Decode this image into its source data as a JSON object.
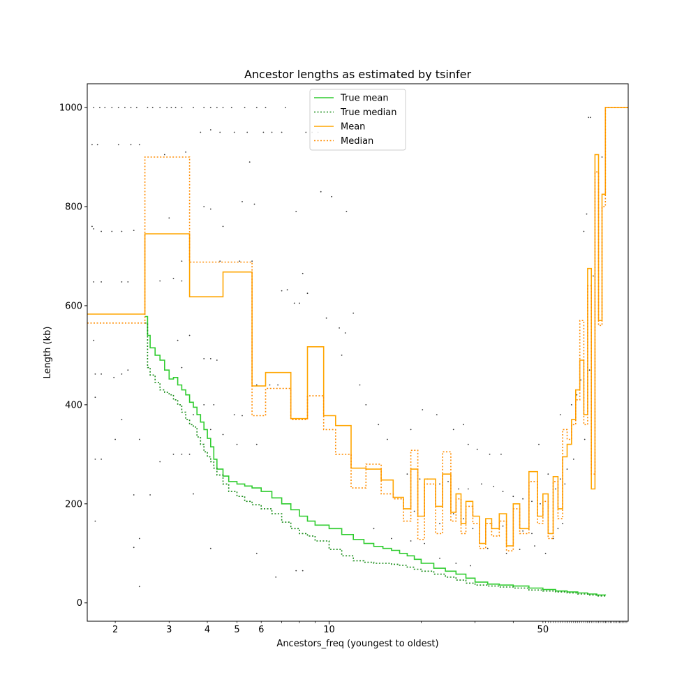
{
  "chart_data": {
    "type": "line",
    "title": "Ancestor lengths as estimated by tsinfer",
    "xlabel": "Ancestors_freq (youngest to oldest)",
    "ylabel": "Length (kb)",
    "xscale": "log",
    "xlim": [
      1.62,
      95
    ],
    "ylim": [
      -37,
      1048
    ],
    "xticks_major": [
      {
        "value": 10,
        "label": "10"
      }
    ],
    "xticks_minor": [
      {
        "value": 2,
        "label": "2"
      },
      {
        "value": 3,
        "label": "3"
      },
      {
        "value": 4,
        "label": "4"
      },
      {
        "value": 5,
        "label": "5"
      },
      {
        "value": 6,
        "label": "6"
      },
      {
        "value": 50,
        "label": "50"
      }
    ],
    "yticks": [
      0,
      200,
      400,
      600,
      800,
      1000
    ],
    "grid": false,
    "legend": {
      "placement": "top-center"
    },
    "colors": {
      "true_mean": "#2ecc2e",
      "true_median": "#188c18",
      "mean": "#ffa500",
      "median": "#ff8c00",
      "points": "#333333"
    },
    "series": [
      {
        "name": "True mean",
        "style": "solid",
        "x": [
          2.5,
          2.55,
          2.6,
          2.7,
          2.8,
          2.9,
          3.0,
          3.1,
          3.2,
          3.3,
          3.4,
          3.5,
          3.6,
          3.7,
          3.8,
          3.9,
          4.0,
          4.1,
          4.2,
          4.3,
          4.5,
          4.7,
          5.0,
          5.3,
          5.6,
          6.0,
          6.5,
          7.0,
          7.5,
          8.0,
          8.5,
          9.0,
          10,
          11,
          12,
          13,
          14,
          15,
          16,
          17,
          18,
          19,
          20,
          22,
          24,
          26,
          28,
          30,
          33,
          36,
          40,
          45,
          50,
          55,
          60,
          65,
          70,
          75,
          80
        ],
        "values": [
          578,
          540,
          515,
          500,
          490,
          470,
          452,
          455,
          440,
          430,
          420,
          405,
          395,
          380,
          365,
          350,
          332,
          315,
          290,
          270,
          256,
          245,
          240,
          236,
          232,
          225,
          212,
          200,
          188,
          175,
          165,
          157,
          150,
          138,
          128,
          120,
          114,
          110,
          106,
          100,
          95,
          88,
          80,
          70,
          64,
          58,
          50,
          42,
          38,
          36,
          34,
          30,
          27,
          24,
          22,
          20,
          18,
          16,
          15
        ]
      },
      {
        "name": "True median",
        "style": "dotted",
        "x": [
          2.5,
          2.55,
          2.6,
          2.7,
          2.8,
          2.9,
          3.0,
          3.1,
          3.2,
          3.3,
          3.4,
          3.5,
          3.6,
          3.7,
          3.8,
          3.9,
          4.0,
          4.1,
          4.2,
          4.3,
          4.5,
          4.7,
          5.0,
          5.3,
          5.6,
          6.0,
          6.5,
          7.0,
          7.5,
          8.0,
          8.5,
          9.0,
          10,
          11,
          12,
          13,
          14,
          15,
          16,
          17,
          18,
          19,
          20,
          22,
          24,
          26,
          28,
          30,
          33,
          36,
          40,
          45,
          50,
          55,
          60,
          65,
          70,
          75,
          80
        ],
        "values": [
          565,
          475,
          460,
          445,
          430,
          425,
          420,
          410,
          400,
          385,
          370,
          360,
          355,
          335,
          320,
          305,
          295,
          285,
          272,
          258,
          240,
          225,
          215,
          205,
          198,
          190,
          180,
          163,
          150,
          140,
          135,
          125,
          108,
          95,
          85,
          82,
          80,
          80,
          78,
          76,
          72,
          68,
          64,
          58,
          52,
          46,
          40,
          36,
          34,
          32,
          30,
          26,
          24,
          22,
          20,
          18,
          16,
          14,
          12
        ]
      },
      {
        "name": "Mean",
        "style": "solid",
        "x": [
          1.62,
          2.5,
          3.5,
          4.5,
          5.6,
          6.2,
          7.5,
          8.5,
          9.6,
          10.5,
          11.8,
          13.2,
          14.8,
          16.2,
          17.5,
          18.5,
          19.5,
          20.5,
          22.3,
          23.5,
          25,
          26,
          27,
          28,
          29.5,
          31,
          32.5,
          34,
          36,
          38,
          40,
          42,
          45,
          48,
          50,
          52,
          54,
          56,
          58,
          60,
          62,
          64,
          66,
          68,
          70,
          72,
          74,
          76,
          78,
          80,
          95
        ],
        "values": [
          583,
          745,
          618,
          668,
          438,
          465,
          372,
          517,
          378,
          358,
          272,
          270,
          248,
          213,
          190,
          270,
          175,
          250,
          195,
          260,
          183,
          220,
          160,
          205,
          175,
          120,
          170,
          150,
          180,
          115,
          200,
          150,
          265,
          175,
          220,
          140,
          255,
          190,
          295,
          320,
          370,
          430,
          490,
          380,
          675,
          230,
          905,
          570,
          825,
          1000,
          1000
        ]
      },
      {
        "name": "Median",
        "style": "dotted",
        "x": [
          1.62,
          2.5,
          3.5,
          4.5,
          5.6,
          6.2,
          7.5,
          8.5,
          9.6,
          10.5,
          11.8,
          13.2,
          14.8,
          16.2,
          17.5,
          18.5,
          19.5,
          20.5,
          22.3,
          23.5,
          25,
          26,
          27,
          28,
          29.5,
          31,
          32.5,
          34,
          36,
          38,
          40,
          42,
          45,
          48,
          50,
          52,
          54,
          56,
          58,
          60,
          62,
          64,
          66,
          68,
          70,
          72,
          74,
          76,
          78,
          80,
          95
        ],
        "values": [
          565,
          900,
          688,
          688,
          378,
          433,
          370,
          418,
          350,
          300,
          232,
          280,
          220,
          210,
          165,
          308,
          128,
          240,
          140,
          305,
          165,
          210,
          140,
          195,
          160,
          110,
          160,
          135,
          165,
          105,
          190,
          140,
          245,
          160,
          205,
          130,
          245,
          170,
          350,
          330,
          360,
          410,
          570,
          360,
          640,
          260,
          870,
          560,
          800,
          1000,
          1000
        ]
      }
    ],
    "scatter_points": [
      {
        "x": 1.7,
        "y": 1000
      },
      {
        "x": 1.78,
        "y": 1000
      },
      {
        "x": 1.85,
        "y": 1000
      },
      {
        "x": 1.95,
        "y": 1000
      },
      {
        "x": 2.05,
        "y": 1000
      },
      {
        "x": 2.15,
        "y": 1000
      },
      {
        "x": 2.25,
        "y": 1000
      },
      {
        "x": 2.35,
        "y": 1000
      },
      {
        "x": 2.55,
        "y": 1000
      },
      {
        "x": 2.65,
        "y": 1000
      },
      {
        "x": 2.8,
        "y": 1000
      },
      {
        "x": 2.95,
        "y": 1000
      },
      {
        "x": 3.05,
        "y": 1000
      },
      {
        "x": 3.15,
        "y": 1000
      },
      {
        "x": 3.3,
        "y": 1000
      },
      {
        "x": 3.6,
        "y": 1000
      },
      {
        "x": 3.9,
        "y": 1000
      },
      {
        "x": 4.1,
        "y": 1000
      },
      {
        "x": 4.3,
        "y": 1000
      },
      {
        "x": 4.5,
        "y": 1000
      },
      {
        "x": 4.8,
        "y": 1000
      },
      {
        "x": 5.3,
        "y": 1000
      },
      {
        "x": 5.8,
        "y": 1000
      },
      {
        "x": 6.2,
        "y": 1000
      },
      {
        "x": 7.2,
        "y": 1000
      },
      {
        "x": 1.68,
        "y": 925
      },
      {
        "x": 1.75,
        "y": 925
      },
      {
        "x": 2.05,
        "y": 925
      },
      {
        "x": 2.25,
        "y": 925
      },
      {
        "x": 2.4,
        "y": 925
      },
      {
        "x": 3.8,
        "y": 950
      },
      {
        "x": 4.1,
        "y": 955
      },
      {
        "x": 4.4,
        "y": 950
      },
      {
        "x": 4.9,
        "y": 950
      },
      {
        "x": 5.4,
        "y": 950
      },
      {
        "x": 6.1,
        "y": 950
      },
      {
        "x": 6.5,
        "y": 950
      },
      {
        "x": 7.0,
        "y": 950
      },
      {
        "x": 8.4,
        "y": 950
      },
      {
        "x": 8.8,
        "y": 950
      },
      {
        "x": 9.2,
        "y": 950
      },
      {
        "x": 2.9,
        "y": 905
      },
      {
        "x": 3.4,
        "y": 910
      },
      {
        "x": 5.5,
        "y": 890
      },
      {
        "x": 9.4,
        "y": 830
      },
      {
        "x": 10.2,
        "y": 820
      },
      {
        "x": 11.4,
        "y": 790
      },
      {
        "x": 5.2,
        "y": 810
      },
      {
        "x": 5.7,
        "y": 805
      },
      {
        "x": 7.8,
        "y": 790
      },
      {
        "x": 3.9,
        "y": 800
      },
      {
        "x": 4.1,
        "y": 795
      },
      {
        "x": 4.5,
        "y": 760
      },
      {
        "x": 1.68,
        "y": 760
      },
      {
        "x": 1.7,
        "y": 755
      },
      {
        "x": 1.8,
        "y": 750
      },
      {
        "x": 1.95,
        "y": 750
      },
      {
        "x": 2.1,
        "y": 750
      },
      {
        "x": 2.3,
        "y": 752
      },
      {
        "x": 3.0,
        "y": 777
      },
      {
        "x": 3.3,
        "y": 690
      },
      {
        "x": 1.7,
        "y": 648
      },
      {
        "x": 1.8,
        "y": 648
      },
      {
        "x": 2.1,
        "y": 648
      },
      {
        "x": 2.2,
        "y": 648
      },
      {
        "x": 2.8,
        "y": 650
      },
      {
        "x": 3.1,
        "y": 655
      },
      {
        "x": 3.3,
        "y": 650
      },
      {
        "x": 4.4,
        "y": 690
      },
      {
        "x": 5.1,
        "y": 690
      },
      {
        "x": 5.6,
        "y": 690
      },
      {
        "x": 7.0,
        "y": 630
      },
      {
        "x": 7.3,
        "y": 632
      },
      {
        "x": 7.7,
        "y": 605
      },
      {
        "x": 8.0,
        "y": 605
      },
      {
        "x": 8.5,
        "y": 625
      },
      {
        "x": 8.2,
        "y": 665
      },
      {
        "x": 1.7,
        "y": 530
      },
      {
        "x": 1.72,
        "y": 462
      },
      {
        "x": 1.8,
        "y": 462
      },
      {
        "x": 1.98,
        "y": 455
      },
      {
        "x": 2.1,
        "y": 462
      },
      {
        "x": 2.2,
        "y": 470
      },
      {
        "x": 3.2,
        "y": 530
      },
      {
        "x": 3.5,
        "y": 540
      },
      {
        "x": 3.3,
        "y": 475
      },
      {
        "x": 3.9,
        "y": 493
      },
      {
        "x": 4.1,
        "y": 493
      },
      {
        "x": 4.3,
        "y": 490
      },
      {
        "x": 3.9,
        "y": 400
      },
      {
        "x": 4.2,
        "y": 400
      },
      {
        "x": 5.8,
        "y": 440
      },
      {
        "x": 6.4,
        "y": 440
      },
      {
        "x": 6.8,
        "y": 440
      },
      {
        "x": 4.9,
        "y": 380
      },
      {
        "x": 5.2,
        "y": 378
      },
      {
        "x": 3.6,
        "y": 380
      },
      {
        "x": 4.1,
        "y": 350
      },
      {
        "x": 4.5,
        "y": 340
      },
      {
        "x": 5.0,
        "y": 320
      },
      {
        "x": 5.8,
        "y": 320
      },
      {
        "x": 1.72,
        "y": 415
      },
      {
        "x": 2.1,
        "y": 370
      },
      {
        "x": 2.0,
        "y": 330
      },
      {
        "x": 2.4,
        "y": 330
      },
      {
        "x": 2.8,
        "y": 285
      },
      {
        "x": 3.1,
        "y": 300
      },
      {
        "x": 3.3,
        "y": 300
      },
      {
        "x": 3.5,
        "y": 300
      },
      {
        "x": 1.72,
        "y": 290
      },
      {
        "x": 1.8,
        "y": 290
      },
      {
        "x": 2.3,
        "y": 218
      },
      {
        "x": 2.6,
        "y": 218
      },
      {
        "x": 3.6,
        "y": 220
      },
      {
        "x": 1.72,
        "y": 165
      },
      {
        "x": 2.4,
        "y": 130
      },
      {
        "x": 2.3,
        "y": 112
      },
      {
        "x": 4.1,
        "y": 110
      },
      {
        "x": 2.4,
        "y": 33
      },
      {
        "x": 5.8,
        "y": 100
      },
      {
        "x": 6.7,
        "y": 52
      },
      {
        "x": 7.8,
        "y": 65
      },
      {
        "x": 8.2,
        "y": 65
      },
      {
        "x": 9.8,
        "y": 575
      },
      {
        "x": 10.8,
        "y": 555
      },
      {
        "x": 11.3,
        "y": 545
      },
      {
        "x": 12.0,
        "y": 585
      },
      {
        "x": 11.0,
        "y": 500
      },
      {
        "x": 12.6,
        "y": 440
      },
      {
        "x": 13.2,
        "y": 400
      },
      {
        "x": 14.5,
        "y": 360
      },
      {
        "x": 15.5,
        "y": 330
      },
      {
        "x": 18.5,
        "y": 350
      },
      {
        "x": 20.2,
        "y": 390
      },
      {
        "x": 22.5,
        "y": 380
      },
      {
        "x": 25.5,
        "y": 350
      },
      {
        "x": 27.5,
        "y": 360
      },
      {
        "x": 28.5,
        "y": 320
      },
      {
        "x": 30.5,
        "y": 310
      },
      {
        "x": 33.5,
        "y": 300
      },
      {
        "x": 36.5,
        "y": 300
      },
      {
        "x": 18.0,
        "y": 260
      },
      {
        "x": 19.8,
        "y": 250
      },
      {
        "x": 21.0,
        "y": 250
      },
      {
        "x": 23.0,
        "y": 240
      },
      {
        "x": 24.5,
        "y": 245
      },
      {
        "x": 26.5,
        "y": 230
      },
      {
        "x": 28.5,
        "y": 230
      },
      {
        "x": 31.5,
        "y": 240
      },
      {
        "x": 34.5,
        "y": 235
      },
      {
        "x": 37.0,
        "y": 225
      },
      {
        "x": 40.0,
        "y": 215
      },
      {
        "x": 43.0,
        "y": 210
      },
      {
        "x": 46.0,
        "y": 205
      },
      {
        "x": 49.0,
        "y": 200
      },
      {
        "x": 52.0,
        "y": 195
      },
      {
        "x": 19.0,
        "y": 185
      },
      {
        "x": 20.5,
        "y": 175
      },
      {
        "x": 23.0,
        "y": 160
      },
      {
        "x": 25.5,
        "y": 180
      },
      {
        "x": 27.5,
        "y": 170
      },
      {
        "x": 29.5,
        "y": 150
      },
      {
        "x": 31.0,
        "y": 140
      },
      {
        "x": 34.0,
        "y": 160
      },
      {
        "x": 37.0,
        "y": 155
      },
      {
        "x": 40.0,
        "y": 150
      },
      {
        "x": 43.0,
        "y": 145
      },
      {
        "x": 46.0,
        "y": 140
      },
      {
        "x": 14.0,
        "y": 150
      },
      {
        "x": 16.0,
        "y": 130
      },
      {
        "x": 18.5,
        "y": 125
      },
      {
        "x": 20.5,
        "y": 120
      },
      {
        "x": 23.0,
        "y": 90
      },
      {
        "x": 26.0,
        "y": 80
      },
      {
        "x": 29.0,
        "y": 75
      },
      {
        "x": 33.0,
        "y": 110
      },
      {
        "x": 38.0,
        "y": 100
      },
      {
        "x": 42.0,
        "y": 108
      },
      {
        "x": 47.0,
        "y": 115
      },
      {
        "x": 51.0,
        "y": 100
      },
      {
        "x": 54.0,
        "y": 130
      },
      {
        "x": 56.0,
        "y": 150
      },
      {
        "x": 58.0,
        "y": 160
      },
      {
        "x": 52.0,
        "y": 260
      },
      {
        "x": 55.0,
        "y": 230
      },
      {
        "x": 57.0,
        "y": 250
      },
      {
        "x": 59.0,
        "y": 240
      },
      {
        "x": 48.5,
        "y": 320
      },
      {
        "x": 57.0,
        "y": 380
      },
      {
        "x": 62.0,
        "y": 400
      },
      {
        "x": 64.5,
        "y": 420
      },
      {
        "x": 66.0,
        "y": 500
      },
      {
        "x": 68.0,
        "y": 750
      },
      {
        "x": 69.5,
        "y": 785
      },
      {
        "x": 70.5,
        "y": 980
      },
      {
        "x": 71.5,
        "y": 980
      },
      {
        "x": 73.0,
        "y": 660
      },
      {
        "x": 76.0,
        "y": 785
      },
      {
        "x": 78.0,
        "y": 900
      },
      {
        "x": 71.0,
        "y": 470
      },
      {
        "x": 66.5,
        "y": 450
      },
      {
        "x": 68.5,
        "y": 330
      },
      {
        "x": 63.0,
        "y": 290
      },
      {
        "x": 60.0,
        "y": 270
      }
    ]
  }
}
